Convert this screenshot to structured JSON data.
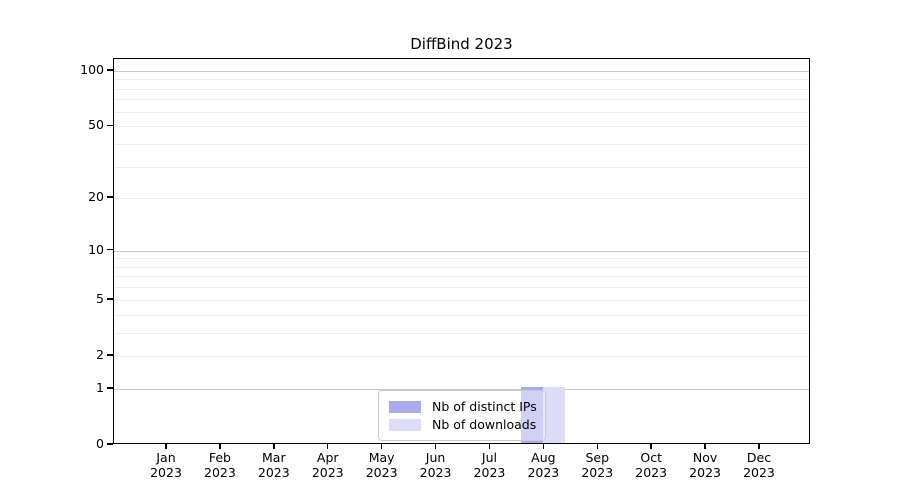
{
  "title": "DiffBind 2023",
  "colors": {
    "background": "#ffffff",
    "axis": "#000000",
    "grid_major": "#c9c9c9",
    "grid_minor": "#ededed",
    "legend_border": "#c9c9c9"
  },
  "chart_data": {
    "type": "bar",
    "title": "DiffBind 2023",
    "categories": [
      "Jan 2023",
      "Feb 2023",
      "Mar 2023",
      "Apr 2023",
      "May 2023",
      "Jun 2023",
      "Jul 2023",
      "Aug 2023",
      "Sep 2023",
      "Oct 2023",
      "Nov 2023",
      "Dec 2023"
    ],
    "series": [
      {
        "name": "Nb of distinct IPs",
        "color": "#aaaaee",
        "values": [
          0,
          0,
          0,
          0,
          0,
          0,
          0,
          1,
          0,
          0,
          0,
          0
        ]
      },
      {
        "name": "Nb of downloads",
        "color": "#dcdcf8",
        "values": [
          0,
          0,
          0,
          0,
          0,
          0,
          0,
          1,
          0,
          0,
          0,
          0
        ]
      }
    ],
    "yticks": [
      0,
      1,
      2,
      5,
      10,
      20,
      50,
      100
    ],
    "major_gridlines": [
      1,
      10,
      100
    ],
    "minor_gridlines": [
      2,
      3,
      4,
      5,
      6,
      7,
      8,
      9,
      20,
      30,
      40,
      50,
      60,
      70,
      80,
      90
    ],
    "scale": "log1p",
    "ylim": [
      0,
      116
    ],
    "grid": true,
    "legend_position": "lower center"
  }
}
